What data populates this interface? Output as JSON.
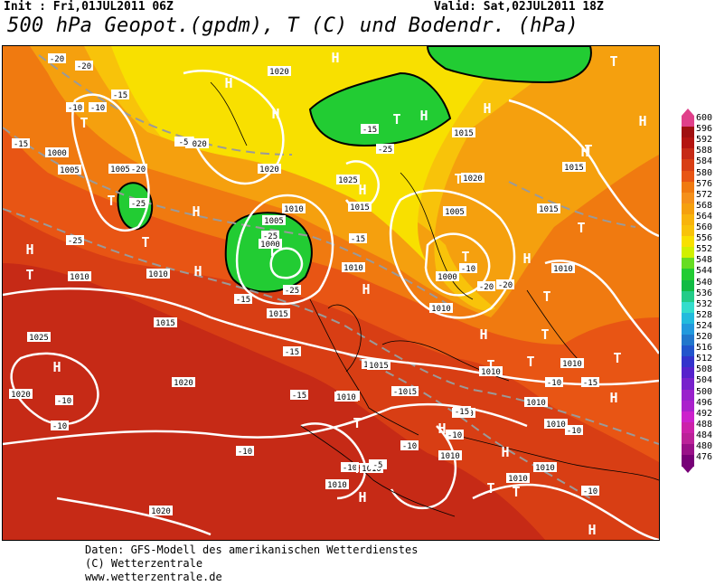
{
  "header": {
    "init": "Init : Fri,01JUL2011 06Z",
    "valid": "Valid: Sat,02JUL2011 18Z",
    "title": "500 hPa Geopot.(gpdm), T (C) und Bodendr. (hPa)"
  },
  "colors": {
    "deep_red": "#c62a16",
    "red": "#d83e14",
    "orange_red": "#e85514",
    "orange": "#f07a10",
    "light_orange": "#f5a00e",
    "yellow_orange": "#f8c30a",
    "yellow": "#f8e000",
    "green": "#22cc33",
    "bright_green": "#33ee44",
    "contour": "#ffffff",
    "isotherm": "#888888"
  },
  "scale": {
    "levels": [
      "600",
      "596",
      "592",
      "588",
      "584",
      "580",
      "576",
      "572",
      "568",
      "564",
      "560",
      "556",
      "552",
      "548",
      "544",
      "540",
      "536",
      "532",
      "528",
      "524",
      "520",
      "516",
      "512",
      "508",
      "504",
      "500",
      "496",
      "492",
      "488",
      "484",
      "480",
      "476"
    ],
    "colors": [
      "#e0408a",
      "#a01010",
      "#b41410",
      "#c62a16",
      "#d83e14",
      "#e85514",
      "#f07a10",
      "#f5901a",
      "#f5a00e",
      "#f8b40c",
      "#f8c30a",
      "#f8e000",
      "#d0f000",
      "#66dd22",
      "#22cc33",
      "#11bb44",
      "#22cc88",
      "#33ddcc",
      "#22bbdd",
      "#2299dd",
      "#2277cc",
      "#2255cc",
      "#3333cc",
      "#5522cc",
      "#7722cc",
      "#9922cc",
      "#aa22cc",
      "#cc22cc",
      "#cc22aa",
      "#bb2299",
      "#991188",
      "#770077"
    ]
  },
  "map": {
    "pressure_labels": [
      "1020",
      "1005",
      "1000",
      "1010",
      "1020",
      "1005",
      "1010",
      "1015",
      "1020",
      "1015",
      "1005",
      "1000",
      "1010",
      "1025",
      "1010",
      "1015",
      "1020",
      "1015",
      "1010",
      "1005",
      "1000",
      "1010",
      "1025",
      "1020",
      "1015",
      "1010",
      "1010",
      "1010",
      "1010",
      "1020",
      "1015",
      "1010",
      "1010",
      "1010",
      "1010",
      "1010",
      "1010",
      "1010",
      "1010",
      "1020",
      "1015",
      "1015"
    ],
    "temp_labels": [
      "-20",
      "-20",
      "-15",
      "-10",
      "-10",
      "-15",
      "-20",
      "-25",
      "-25",
      "-15",
      "-25",
      "-20",
      "-25",
      "-15",
      "-15",
      "-15",
      "-15",
      "-10",
      "-10",
      "-10",
      "-10",
      "-15",
      "-20",
      "-15",
      "-10",
      "-10",
      "-10",
      "-10",
      "-10",
      "-10",
      "-5",
      "-5",
      "-10",
      "-15",
      "-25"
    ],
    "high_letter": "H",
    "low_letter": "T"
  },
  "credits": {
    "line1": "Daten: GFS-Modell des amerikanischen Wetterdienstes",
    "line2": "(C) Wetterzentrale",
    "line3": "www.wetterzentrale.de"
  }
}
